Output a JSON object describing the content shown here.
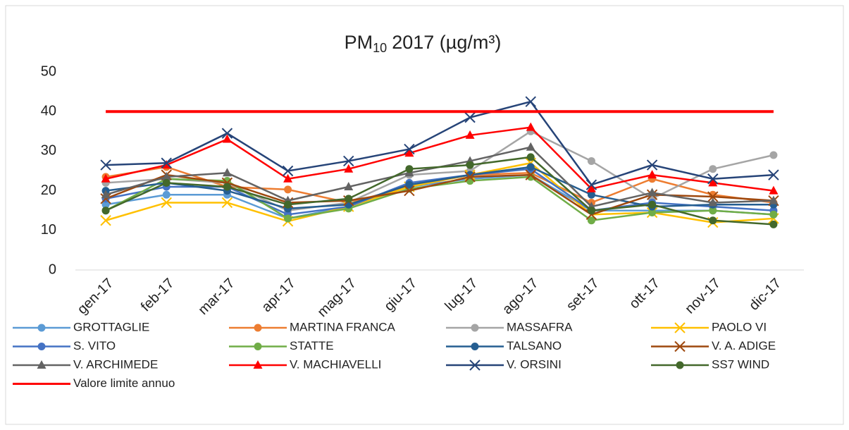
{
  "chart_data": {
    "type": "line",
    "title": "PM",
    "title_subscript": "10",
    "title_rest": "2017 (µg/m³)",
    "categories": [
      "gen-17",
      "feb-17",
      "mar-17",
      "apr-17",
      "mag-17",
      "giu-17",
      "lug-17",
      "ago-17",
      "set-17",
      "ott-17",
      "nov-17",
      "dic-17"
    ],
    "ylim": [
      0,
      50
    ],
    "yticks": [
      0,
      10,
      20,
      30,
      40,
      50
    ],
    "grid": false,
    "legend": "bottom",
    "series": [
      {
        "name": "GROTTAGLIE",
        "color": "#5b9bd5",
        "marker": "circle",
        "values": [
          16.5,
          19,
          19,
          13,
          16,
          21,
          23,
          24,
          15,
          15,
          15,
          14
        ]
      },
      {
        "name": "MARTINA FRANCA",
        "color": "#ed7d31",
        "marker": "circle",
        "values": [
          23.5,
          26,
          21,
          20.3,
          17,
          21,
          24,
          24.5,
          17,
          23,
          19,
          17
        ]
      },
      {
        "name": "MASSAFRA",
        "color": "#a5a5a5",
        "marker": "circle",
        "values": [
          22,
          23,
          22,
          15,
          17,
          24,
          25,
          35,
          27.5,
          18,
          25.5,
          29
        ]
      },
      {
        "name": "PAOLO VI",
        "color": "#ffc000",
        "marker": "x",
        "values": [
          12.5,
          17,
          17,
          12.3,
          16,
          21,
          24,
          27,
          14,
          14.5,
          12,
          13
        ]
      },
      {
        "name": "S. VITO",
        "color": "#4472c4",
        "marker": "circle",
        "values": [
          18,
          21,
          21,
          14,
          16,
          22,
          24,
          25.5,
          15,
          17,
          16,
          15
        ]
      },
      {
        "name": "STATTE",
        "color": "#70ad47",
        "marker": "circle",
        "values": [
          15,
          23,
          22.5,
          13,
          15.5,
          20.5,
          22.5,
          23.5,
          12.5,
          14.5,
          15,
          14
        ]
      },
      {
        "name": "TALSANO",
        "color": "#255e91",
        "marker": "circle",
        "values": [
          20,
          22,
          20,
          15.5,
          16.5,
          21.5,
          24,
          26,
          19,
          16,
          16.5,
          16.5
        ]
      },
      {
        "name": "V. A. ADIGE",
        "color": "#9e480e",
        "marker": "x",
        "values": [
          18,
          24,
          22,
          17,
          17.5,
          20,
          23.5,
          24,
          14,
          19,
          18.5,
          17.5
        ]
      },
      {
        "name": "V. ARCHIMEDE",
        "color": "#636363",
        "marker": "triangle",
        "values": [
          19,
          23.5,
          24.5,
          17.5,
          21,
          24.5,
          27.5,
          31,
          16,
          19.5,
          17,
          17.5
        ]
      },
      {
        "name": "V. MACHIAVELLI",
        "color": "#ff0000",
        "marker": "triangle",
        "values": [
          23,
          26.5,
          33,
          23,
          25.5,
          29.5,
          34,
          36,
          20.5,
          24,
          22,
          20
        ]
      },
      {
        "name": "V. ORSINI",
        "color": "#264478",
        "marker": "x",
        "values": [
          26.5,
          27,
          34.5,
          25,
          27.5,
          30.5,
          38.5,
          42.5,
          21.5,
          26.5,
          23,
          24
        ]
      },
      {
        "name": "SS7 WIND",
        "color": "#43682b",
        "marker": "circle",
        "values": [
          15,
          22,
          21,
          16.5,
          18,
          25.5,
          26.5,
          28.5,
          15,
          16.5,
          12.5,
          11.5
        ]
      },
      {
        "name": "Valore limite annuo",
        "color": "#ff0000",
        "marker": "none",
        "width": 4,
        "values": [
          40,
          40,
          40,
          40,
          40,
          40,
          40,
          40,
          40,
          40,
          40,
          40
        ]
      }
    ]
  }
}
